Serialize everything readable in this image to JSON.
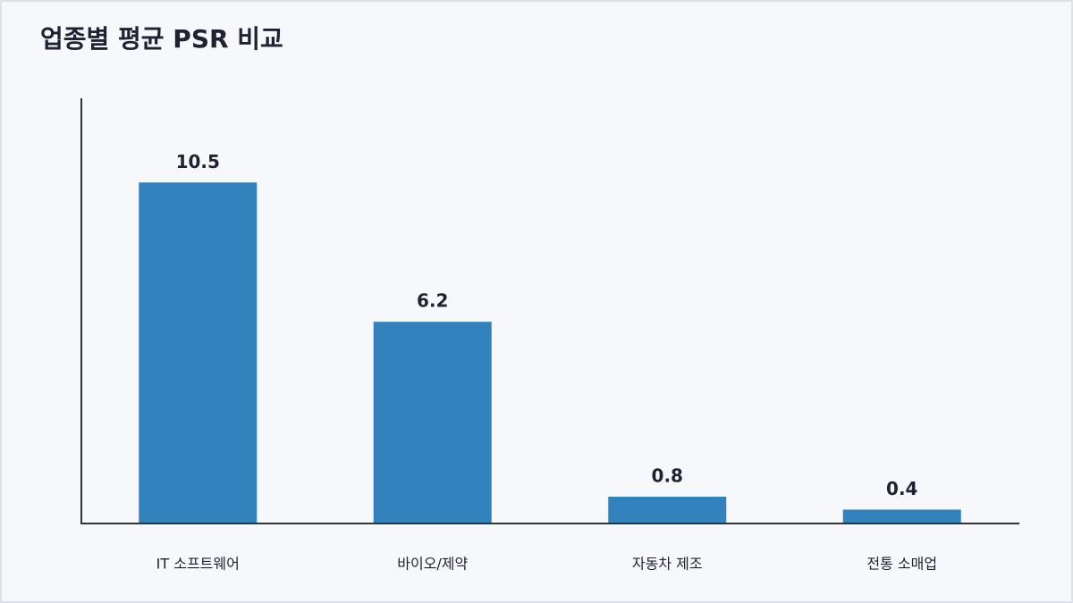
{
  "chart_data": {
    "type": "bar",
    "title": "업종별 평균 PSR 비교",
    "categories": [
      "IT 소프트웨어",
      "바이오/제약",
      "자동차 제조",
      "전통 소매업"
    ],
    "values": [
      10.5,
      6.2,
      0.8,
      0.4
    ],
    "color": "#3182bd",
    "ylim": [
      0,
      13.1
    ],
    "grid": false
  }
}
